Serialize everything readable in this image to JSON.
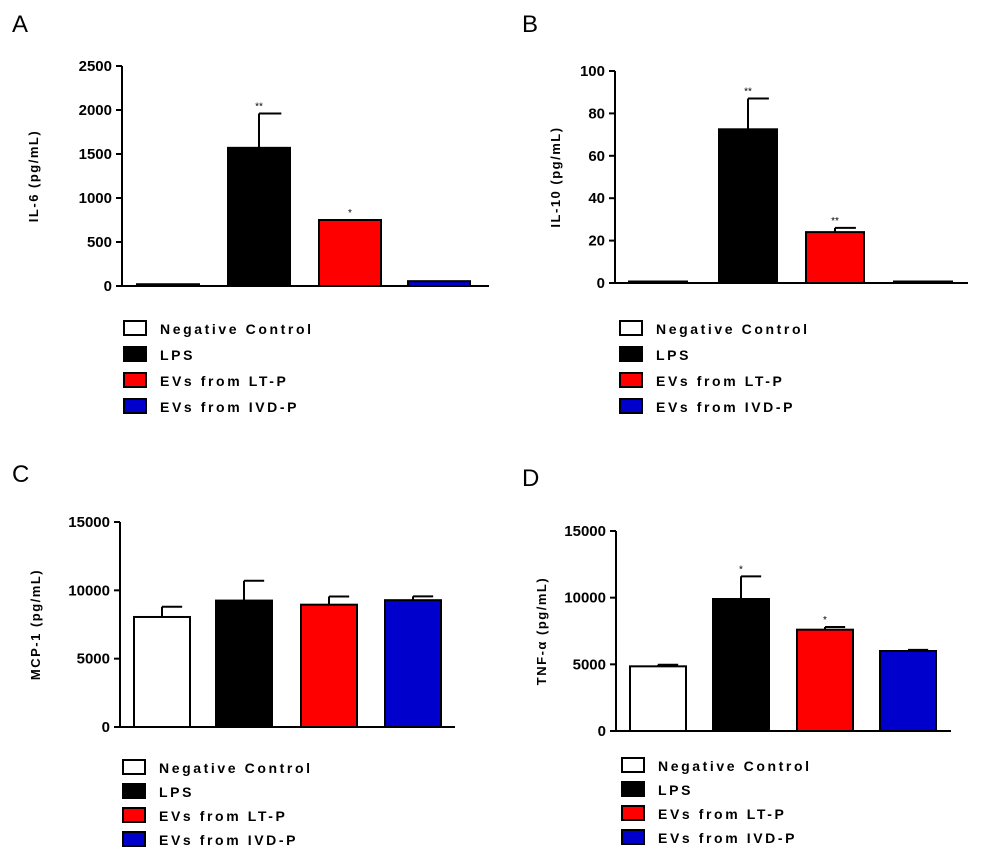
{
  "figure_title": "",
  "colors": {
    "negative_control": "#ffffff",
    "lps": "#000000",
    "evs_lt_p": "#ff0000",
    "evs_ivd_p": "#0000cc",
    "axis": "#000000"
  },
  "chart_data": [
    {
      "panel": "A",
      "type": "bar",
      "ylabel": "IL-6 (pg/mL)",
      "ylim": [
        0,
        2500
      ],
      "yticks": [
        0,
        500,
        1000,
        1500,
        2000,
        2500
      ],
      "ytick_labels": [
        "0",
        "500",
        "1000",
        "1500",
        "2000",
        "2500"
      ],
      "categories": [
        "Negative Control",
        "LPS",
        "EVs from LT-P",
        "EVs from IVD-P"
      ],
      "values": [
        20,
        1570,
        750,
        55
      ],
      "errors": [
        0,
        390,
        0,
        0
      ],
      "significance": [
        "",
        "**",
        "*",
        ""
      ],
      "legend": [
        "Negative Control",
        "LPS",
        "EVs from LT-P",
        "EVs from IVD-P"
      ]
    },
    {
      "panel": "B",
      "type": "bar",
      "ylabel": "IL-10 (pg/mL)",
      "ylim": [
        0,
        100
      ],
      "yticks": [
        0,
        20,
        40,
        60,
        80,
        100
      ],
      "ytick_labels": [
        "0",
        "20",
        "40",
        "60",
        "80",
        "100"
      ],
      "categories": [
        "Negative Control",
        "LPS",
        "EVs from LT-P",
        "EVs from IVD-P"
      ],
      "values": [
        0.5,
        72.5,
        24,
        0.5
      ],
      "errors": [
        0,
        14.5,
        2,
        0
      ],
      "significance": [
        "",
        "**",
        "**",
        ""
      ],
      "legend": [
        "Negative Control",
        "LPS",
        "EVs from LT-P",
        "EVs from IVD-P"
      ]
    },
    {
      "panel": "C",
      "type": "bar",
      "ylabel": "MCP-1 (pg/mL)",
      "ylim": [
        0,
        15000
      ],
      "yticks": [
        0,
        5000,
        10000,
        15000
      ],
      "ytick_labels": [
        "0",
        "5000",
        "10000",
        "15000"
      ],
      "categories": [
        "Negative Control",
        "LPS",
        "EVs from LT-P",
        "EVs from IVD-P"
      ],
      "values": [
        8050,
        9250,
        8950,
        9280
      ],
      "errors": [
        750,
        1450,
        600,
        280
      ],
      "significance": [
        "",
        "",
        "",
        ""
      ],
      "legend": [
        "Negative Control",
        "LPS",
        "EVs from LT-P",
        "EVs from IVD-P"
      ]
    },
    {
      "panel": "D",
      "type": "bar",
      "ylabel": "TNF-α (pg/mL)",
      "ylim": [
        0,
        15000
      ],
      "yticks": [
        0,
        5000,
        10000,
        15000
      ],
      "ytick_labels": [
        "0",
        "5000",
        "10000",
        "15000"
      ],
      "categories": [
        "Negative Control",
        "LPS",
        "EVs from LT-P",
        "EVs from IVD-P"
      ],
      "values": [
        4850,
        9900,
        7600,
        6000
      ],
      "errors": [
        120,
        1700,
        200,
        80
      ],
      "significance": [
        "",
        "*",
        "*",
        ""
      ],
      "legend": [
        "Negative Control",
        "LPS",
        "EVs from LT-P",
        "EVs from IVD-P"
      ]
    }
  ]
}
